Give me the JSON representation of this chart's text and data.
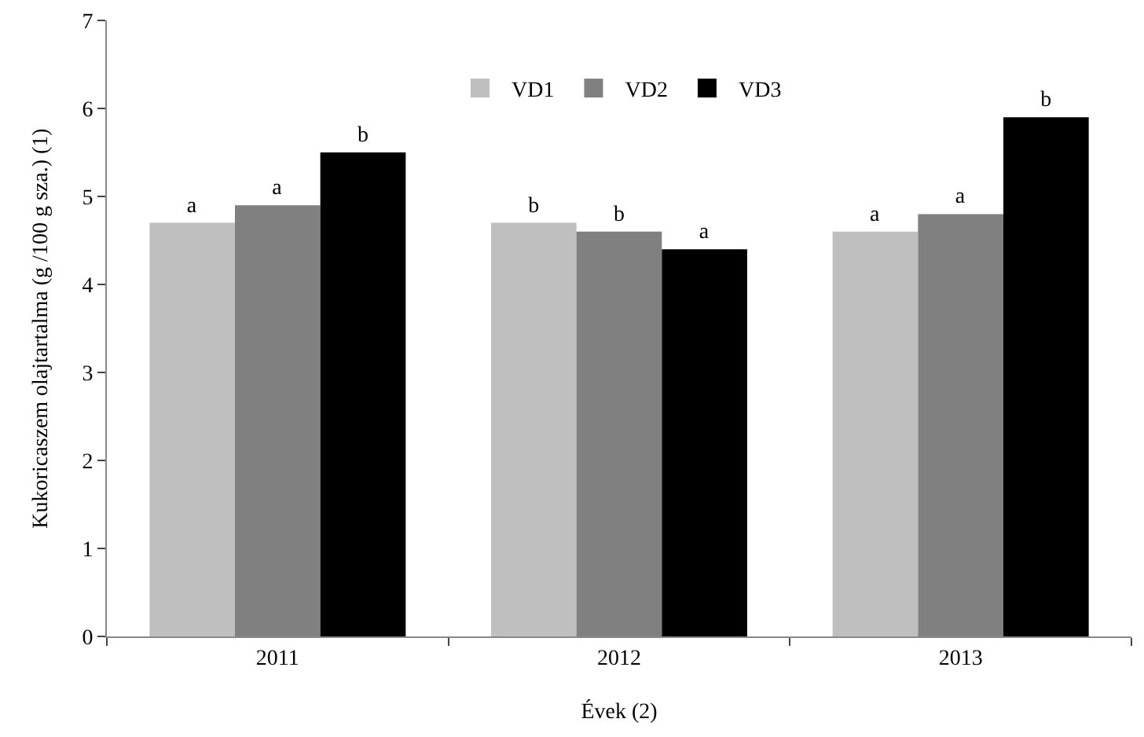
{
  "chart_data": {
    "type": "bar",
    "xlabel": "Évek (2)",
    "ylabel": "Kukoricaszem olajtartalma (g /100 g sza.) (1)",
    "categories": [
      "2011",
      "2012",
      "2013"
    ],
    "series": [
      {
        "name": "VD1",
        "color": "#bfbfbf",
        "values": [
          4.7,
          4.7,
          4.6
        ],
        "value_labels": [
          "a",
          "b",
          "a"
        ]
      },
      {
        "name": "VD2",
        "color": "#808080",
        "values": [
          4.9,
          4.6,
          4.8
        ],
        "value_labels": [
          "a",
          "b",
          "a"
        ]
      },
      {
        "name": "VD3",
        "color": "#000000",
        "values": [
          5.5,
          4.4,
          5.9
        ],
        "value_labels": [
          "b",
          "a",
          "b"
        ]
      }
    ],
    "ylim": [
      0,
      7
    ],
    "yticks": [
      0,
      1,
      2,
      3,
      4,
      5,
      6,
      7
    ],
    "grid": false,
    "legend": "top"
  }
}
